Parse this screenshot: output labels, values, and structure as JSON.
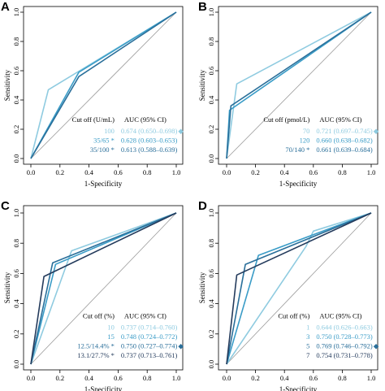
{
  "colors": {
    "light": "#8fcbe0",
    "mid": "#3a9cc7",
    "dark": "#2a6f9a",
    "darkest": "#243b5c",
    "diag": "#9a9a9a"
  },
  "axes": {
    "xlabel": "1-Specificity",
    "ylabel": "Sensitivity",
    "ticks": [
      "0.0",
      "0.2",
      "0.4",
      "0.6",
      "0.8",
      "1.0"
    ],
    "xlim": [
      0,
      1
    ],
    "ylim": [
      0,
      1
    ]
  },
  "legend_headers": {
    "cutoff": "Cut off",
    "auc": "AUC (95% CI)"
  },
  "chart_data": [
    {
      "type": "line",
      "panel": "A",
      "title": "",
      "xlabel": "1-Specificity",
      "ylabel": "Sensitivity",
      "xlim": [
        0,
        1
      ],
      "ylim": [
        0,
        1
      ],
      "grid": false,
      "legend_placement": "bottom-right",
      "cutoff_header": "Cut off (U/mL)",
      "auc_header": "AUC (95% CI)",
      "series": [
        {
          "name": "100",
          "auc": "0.674 (0.650–0.698)",
          "mark": "◆",
          "color": "#8fcbe0",
          "x": [
            0,
            0.12,
            1
          ],
          "y": [
            0,
            0.47,
            1
          ]
        },
        {
          "name": "35/65 *",
          "auc": "0.628 (0.603–0.653)",
          "mark": "",
          "color": "#3a9cc7",
          "x": [
            0,
            0.33,
            1
          ],
          "y": [
            0,
            0.59,
            1
          ]
        },
        {
          "name": "35/100 *",
          "auc": "0.613 (0.588–0.639)",
          "mark": "",
          "color": "#2a6f9a",
          "x": [
            0,
            0.33,
            1
          ],
          "y": [
            0,
            0.56,
            1
          ]
        }
      ]
    },
    {
      "type": "line",
      "panel": "B",
      "title": "",
      "xlabel": "1-Specificity",
      "ylabel": "Sensitivity",
      "xlim": [
        0,
        1
      ],
      "ylim": [
        0,
        1
      ],
      "grid": false,
      "legend_placement": "bottom-right",
      "cutoff_header": "Cut off (pmol/L)",
      "auc_header": "AUC (95% CI)",
      "series": [
        {
          "name": "70",
          "auc": "0.721 (0.697–0.745)",
          "mark": "◆",
          "color": "#8fcbe0",
          "x": [
            0,
            0.07,
            1
          ],
          "y": [
            0,
            0.51,
            1
          ]
        },
        {
          "name": "120",
          "auc": "0.660 (0.638–0.682)",
          "mark": "",
          "color": "#3a9cc7",
          "x": [
            0,
            0.02,
            1
          ],
          "y": [
            0,
            0.33,
            1
          ]
        },
        {
          "name": "70/140 *",
          "auc": "0.661 (0.639–0.684)",
          "mark": "",
          "color": "#2a6f9a",
          "x": [
            0,
            0.03,
            1
          ],
          "y": [
            0,
            0.36,
            1
          ]
        }
      ]
    },
    {
      "type": "line",
      "panel": "C",
      "title": "",
      "xlabel": "1-Specificity",
      "ylabel": "Sensitivity",
      "xlim": [
        0,
        1
      ],
      "ylim": [
        0,
        1
      ],
      "grid": false,
      "legend_placement": "bottom-right",
      "cutoff_header": "Cut off (%)",
      "auc_header": "AUC (95% CI)",
      "series": [
        {
          "name": "10",
          "auc": "0.737 (0.714–0.760)",
          "mark": "",
          "color": "#8fcbe0",
          "x": [
            0,
            0.28,
            1
          ],
          "y": [
            0,
            0.75,
            1
          ]
        },
        {
          "name": "15",
          "auc": "0.748 (0.724–0.772)",
          "mark": "",
          "color": "#3a9cc7",
          "x": [
            0,
            0.17,
            1
          ],
          "y": [
            0,
            0.66,
            1
          ]
        },
        {
          "name": "12.5/14.4% *",
          "auc": "0.750 (0.727–0.774)",
          "mark": "◆",
          "color": "#2a6f9a",
          "x": [
            0,
            0.15,
            1
          ],
          "y": [
            0,
            0.67,
            1
          ]
        },
        {
          "name": "13.1/27.7% *",
          "auc": "0.737 (0.713–0.761)",
          "mark": "",
          "color": "#243b5c",
          "x": [
            0,
            0.09,
            1
          ],
          "y": [
            0,
            0.58,
            1
          ]
        }
      ]
    },
    {
      "type": "line",
      "panel": "D",
      "title": "",
      "xlabel": "1-Specificity",
      "ylabel": "Sensitivity",
      "xlim": [
        0,
        1
      ],
      "ylim": [
        0,
        1
      ],
      "grid": false,
      "legend_placement": "bottom-right",
      "cutoff_header": "Cut off (%)",
      "auc_header": "AUC (95% CI)",
      "series": [
        {
          "name": "1",
          "auc": "0.644 (0.626–0.663)",
          "mark": "",
          "color": "#8fcbe0",
          "x": [
            0,
            0.55,
            0.6,
            1
          ],
          "y": [
            0,
            0.78,
            0.88,
            1
          ]
        },
        {
          "name": "3",
          "auc": "0.750 (0.728–0.773)",
          "mark": "",
          "color": "#3a9cc7",
          "x": [
            0,
            0.22,
            1
          ],
          "y": [
            0,
            0.72,
            1
          ]
        },
        {
          "name": "5",
          "auc": "0.769 (0.746–0.792)",
          "mark": "◆",
          "color": "#2a6f9a",
          "x": [
            0,
            0.13,
            1
          ],
          "y": [
            0,
            0.66,
            1
          ]
        },
        {
          "name": "7",
          "auc": "0.754 (0.731–0.778)",
          "mark": "",
          "color": "#243b5c",
          "x": [
            0,
            0.07,
            1
          ],
          "y": [
            0,
            0.59,
            1
          ]
        }
      ]
    }
  ]
}
